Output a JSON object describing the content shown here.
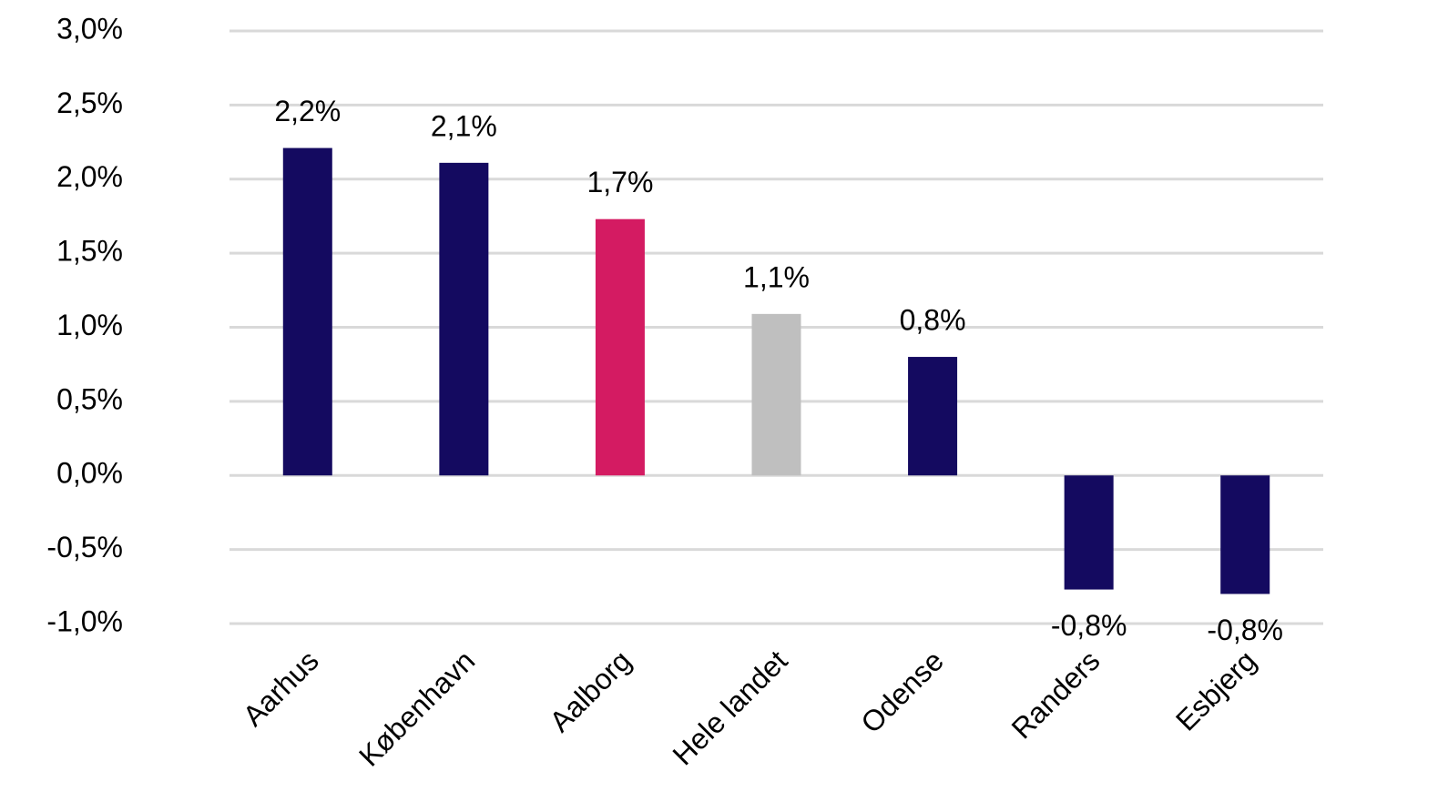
{
  "chart_data": {
    "type": "bar",
    "categories": [
      "Aarhus",
      "København",
      "Aalborg",
      "Hele landet",
      "Odense",
      "Randers",
      "Esbjerg"
    ],
    "values": [
      2.21,
      2.11,
      1.73,
      1.09,
      0.8,
      -0.77,
      -0.8
    ],
    "value_labels": [
      "2,2%",
      "2,1%",
      "1,7%",
      "1,1%",
      "0,8%",
      "-0,8%",
      "-0,8%"
    ],
    "colors": [
      "#140a60",
      "#140a60",
      "#d41b62",
      "#bfbfbf",
      "#140a60",
      "#140a60",
      "#140a60"
    ],
    "ylim": [
      -1,
      3
    ],
    "yticks": [
      {
        "value": -1,
        "label": "-1,0%"
      },
      {
        "value": -0.5,
        "label": "-0,5%"
      },
      {
        "value": 0,
        "label": "0,0%"
      },
      {
        "value": 0.5,
        "label": "0,5%"
      },
      {
        "value": 1,
        "label": "1,0%"
      },
      {
        "value": 1.5,
        "label": "1,5%"
      },
      {
        "value": 2,
        "label": "2,0%"
      },
      {
        "value": 2.5,
        "label": "2,5%"
      },
      {
        "value": 3,
        "label": "3,0%"
      }
    ],
    "grid": true
  }
}
